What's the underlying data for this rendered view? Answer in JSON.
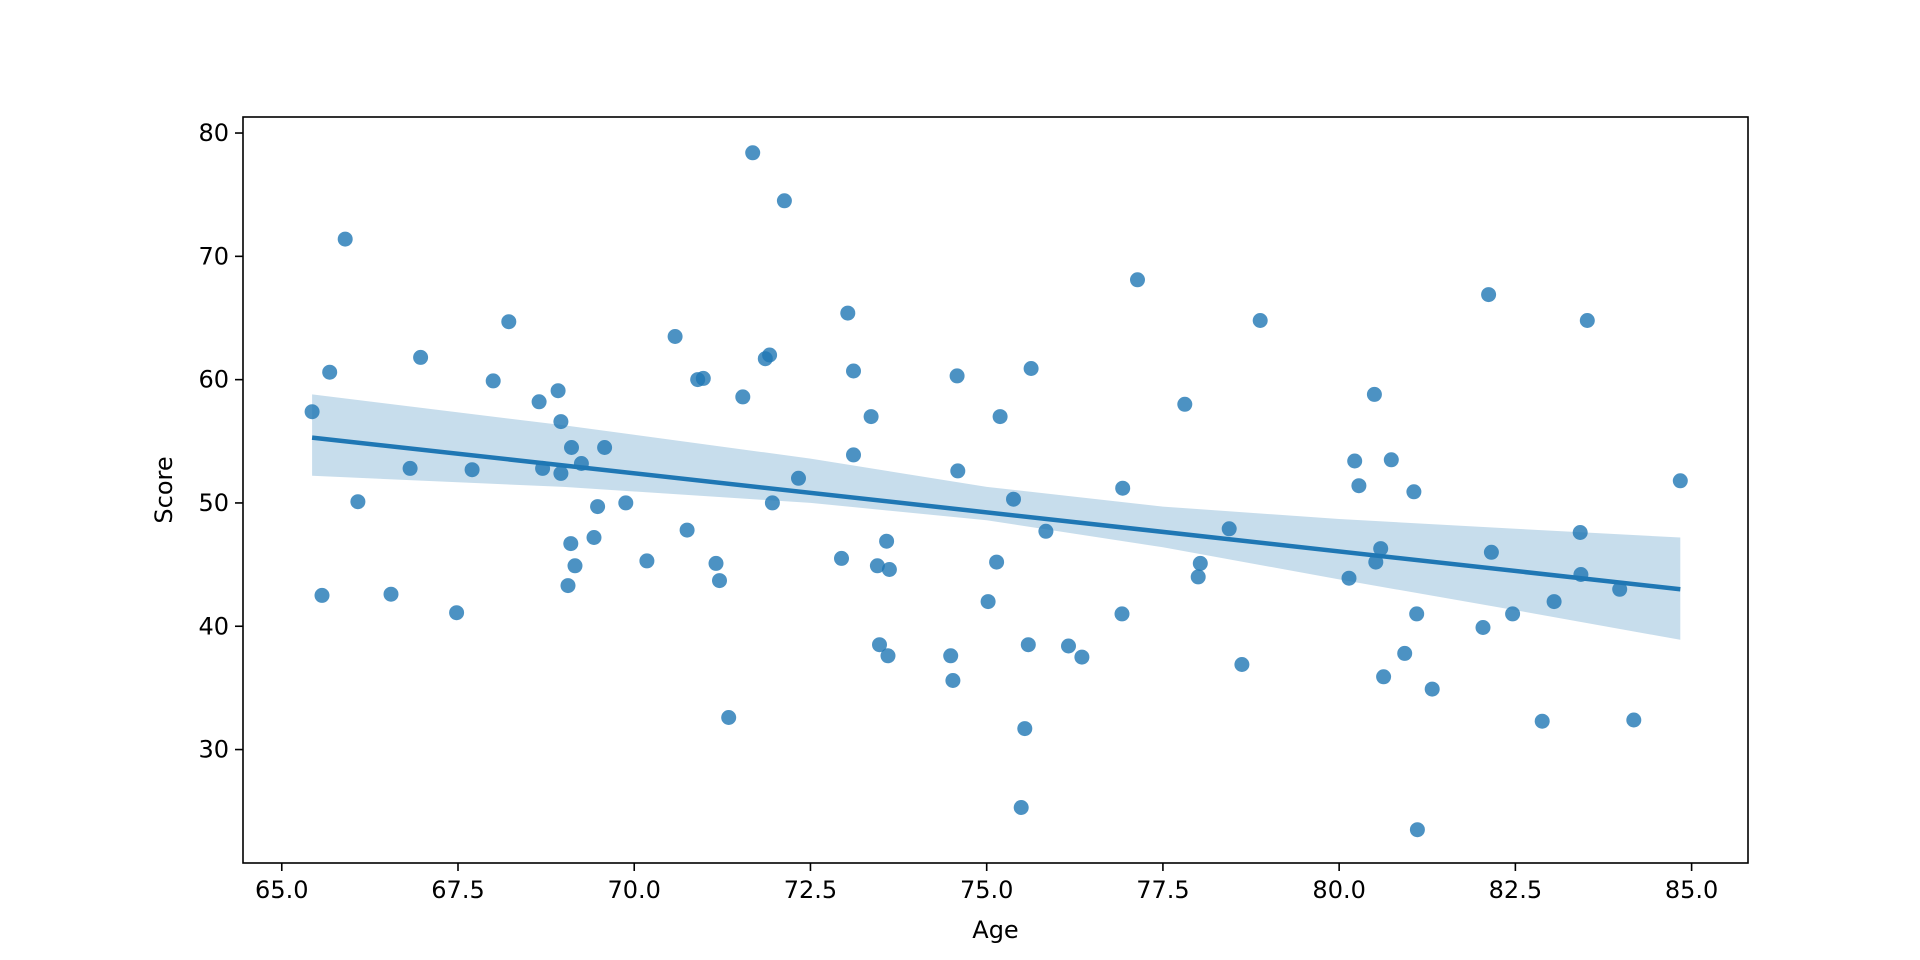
{
  "chart_data": {
    "type": "scatter",
    "title": "",
    "xlabel": "Age",
    "ylabel": "Score",
    "xlim": [
      64.45,
      85.8
    ],
    "ylim": [
      20.8,
      81.3
    ],
    "x_ticks": [
      65.0,
      67.5,
      70.0,
      72.5,
      75.0,
      77.5,
      80.0,
      82.5,
      85.0
    ],
    "x_tick_labels": [
      "65.0",
      "67.5",
      "70.0",
      "72.5",
      "75.0",
      "77.5",
      "80.0",
      "82.5",
      "85.0"
    ],
    "y_ticks": [
      30,
      40,
      50,
      60,
      70,
      80
    ],
    "y_tick_labels": [
      "30",
      "40",
      "50",
      "60",
      "70",
      "80"
    ],
    "grid": false,
    "colors": {
      "points": "#1f77b4",
      "line": "#1f77b4",
      "band": "#1f77b4"
    },
    "points": [
      {
        "x": 65.43,
        "y": 57.4
      },
      {
        "x": 65.57,
        "y": 42.5
      },
      {
        "x": 65.68,
        "y": 60.6
      },
      {
        "x": 65.9,
        "y": 71.4
      },
      {
        "x": 66.08,
        "y": 50.1
      },
      {
        "x": 66.55,
        "y": 42.6
      },
      {
        "x": 66.82,
        "y": 52.8
      },
      {
        "x": 66.97,
        "y": 61.8
      },
      {
        "x": 67.48,
        "y": 41.1
      },
      {
        "x": 67.7,
        "y": 52.7
      },
      {
        "x": 68.0,
        "y": 59.9
      },
      {
        "x": 68.22,
        "y": 64.7
      },
      {
        "x": 68.65,
        "y": 58.2
      },
      {
        "x": 68.7,
        "y": 52.8
      },
      {
        "x": 68.92,
        "y": 59.1
      },
      {
        "x": 68.96,
        "y": 56.6
      },
      {
        "x": 68.96,
        "y": 52.4
      },
      {
        "x": 69.06,
        "y": 43.3
      },
      {
        "x": 69.1,
        "y": 46.7
      },
      {
        "x": 69.11,
        "y": 54.5
      },
      {
        "x": 69.16,
        "y": 44.9
      },
      {
        "x": 69.25,
        "y": 53.2
      },
      {
        "x": 69.43,
        "y": 47.2
      },
      {
        "x": 69.48,
        "y": 49.7
      },
      {
        "x": 69.58,
        "y": 54.5
      },
      {
        "x": 69.88,
        "y": 50.0
      },
      {
        "x": 70.18,
        "y": 45.3
      },
      {
        "x": 70.58,
        "y": 63.5
      },
      {
        "x": 70.75,
        "y": 47.8
      },
      {
        "x": 70.9,
        "y": 60.0
      },
      {
        "x": 70.98,
        "y": 60.1
      },
      {
        "x": 71.16,
        "y": 45.1
      },
      {
        "x": 71.21,
        "y": 43.7
      },
      {
        "x": 71.34,
        "y": 32.6
      },
      {
        "x": 71.54,
        "y": 58.6
      },
      {
        "x": 71.68,
        "y": 78.4
      },
      {
        "x": 71.86,
        "y": 61.7
      },
      {
        "x": 71.92,
        "y": 62.0
      },
      {
        "x": 71.96,
        "y": 50.0
      },
      {
        "x": 72.13,
        "y": 74.5
      },
      {
        "x": 72.33,
        "y": 52.0
      },
      {
        "x": 72.94,
        "y": 45.5
      },
      {
        "x": 73.03,
        "y": 65.4
      },
      {
        "x": 73.11,
        "y": 60.7
      },
      {
        "x": 73.11,
        "y": 53.9
      },
      {
        "x": 73.36,
        "y": 57.0
      },
      {
        "x": 73.45,
        "y": 44.9
      },
      {
        "x": 73.48,
        "y": 38.5
      },
      {
        "x": 73.58,
        "y": 46.9
      },
      {
        "x": 73.6,
        "y": 37.6
      },
      {
        "x": 73.62,
        "y": 44.6
      },
      {
        "x": 74.49,
        "y": 37.6
      },
      {
        "x": 74.52,
        "y": 35.6
      },
      {
        "x": 74.58,
        "y": 60.3
      },
      {
        "x": 74.59,
        "y": 52.6
      },
      {
        "x": 75.02,
        "y": 42.0
      },
      {
        "x": 75.14,
        "y": 45.2
      },
      {
        "x": 75.19,
        "y": 57.0
      },
      {
        "x": 75.38,
        "y": 50.3
      },
      {
        "x": 75.49,
        "y": 25.3
      },
      {
        "x": 75.54,
        "y": 31.7
      },
      {
        "x": 75.59,
        "y": 38.5
      },
      {
        "x": 75.63,
        "y": 60.9
      },
      {
        "x": 75.84,
        "y": 47.7
      },
      {
        "x": 76.16,
        "y": 38.4
      },
      {
        "x": 76.35,
        "y": 37.5
      },
      {
        "x": 76.92,
        "y": 41.0
      },
      {
        "x": 76.93,
        "y": 51.2
      },
      {
        "x": 77.14,
        "y": 68.1
      },
      {
        "x": 77.81,
        "y": 58.0
      },
      {
        "x": 78.0,
        "y": 44.0
      },
      {
        "x": 78.03,
        "y": 45.1
      },
      {
        "x": 78.44,
        "y": 47.9
      },
      {
        "x": 78.62,
        "y": 36.9
      },
      {
        "x": 78.88,
        "y": 64.8
      },
      {
        "x": 80.14,
        "y": 43.9
      },
      {
        "x": 80.22,
        "y": 53.4
      },
      {
        "x": 80.28,
        "y": 51.4
      },
      {
        "x": 80.5,
        "y": 58.8
      },
      {
        "x": 80.52,
        "y": 45.2
      },
      {
        "x": 80.59,
        "y": 46.3
      },
      {
        "x": 80.63,
        "y": 35.9
      },
      {
        "x": 80.74,
        "y": 53.5
      },
      {
        "x": 80.93,
        "y": 37.8
      },
      {
        "x": 81.06,
        "y": 50.9
      },
      {
        "x": 81.1,
        "y": 41.0
      },
      {
        "x": 81.11,
        "y": 23.5
      },
      {
        "x": 81.32,
        "y": 34.9
      },
      {
        "x": 82.04,
        "y": 39.9
      },
      {
        "x": 82.12,
        "y": 66.9
      },
      {
        "x": 82.16,
        "y": 46.0
      },
      {
        "x": 82.46,
        "y": 41.0
      },
      {
        "x": 82.88,
        "y": 32.3
      },
      {
        "x": 83.05,
        "y": 42.0
      },
      {
        "x": 83.42,
        "y": 47.6
      },
      {
        "x": 83.43,
        "y": 44.2
      },
      {
        "x": 83.52,
        "y": 64.8
      },
      {
        "x": 83.98,
        "y": 43.0
      },
      {
        "x": 84.18,
        "y": 32.4
      },
      {
        "x": 84.84,
        "y": 51.8
      }
    ],
    "regression": {
      "x": [
        65.43,
        84.84
      ],
      "y": [
        55.3,
        43.0
      ],
      "ci_band": {
        "x": [
          65.43,
          69.0,
          72.5,
          75.0,
          77.5,
          80.0,
          82.5,
          84.84
        ],
        "lower": [
          52.2,
          51.3,
          50.0,
          48.6,
          46.4,
          43.8,
          41.3,
          38.9
        ],
        "upper": [
          58.8,
          56.3,
          53.6,
          51.3,
          49.7,
          48.7,
          47.9,
          47.2
        ]
      }
    }
  }
}
